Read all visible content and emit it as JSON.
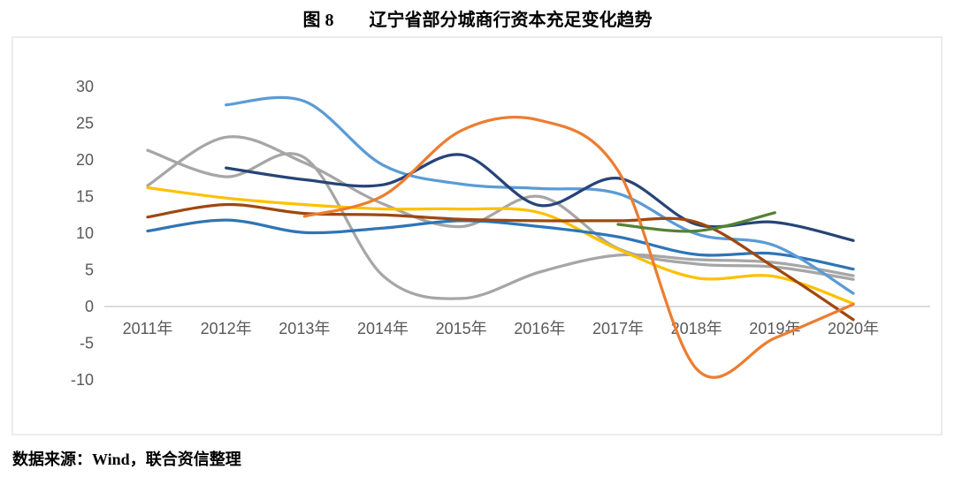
{
  "caption": "数据来源：Wind，联合资信整理",
  "chart_data": {
    "type": "line",
    "title": "图 8　　辽宁省部分城商行资本充足变化趋势",
    "subtitle": "",
    "xlabel": "",
    "ylabel": "",
    "x_categories": [
      "2011年",
      "2012年",
      "2013年",
      "2014年",
      "2015年",
      "2016年",
      "2017年",
      "2018年",
      "2019年",
      "2020年"
    ],
    "y_ticks": [
      30,
      25,
      20,
      15,
      10,
      5,
      0,
      -5,
      -10
    ],
    "ylim": [
      -10,
      30
    ],
    "grid": "zero-axis-line-only",
    "legend_position": "none",
    "line_style": "smooth",
    "plot_colors": {
      "border_color": "#D9D9D9",
      "axis_line_color": "#C6C6C6",
      "tick_label_color": "#595959",
      "background": "#FFFFFF"
    },
    "series": [
      {
        "id": "series-gray-a",
        "color": "#A6A6A6",
        "start_index": 0,
        "values": [
          21.3,
          17.7,
          20.3,
          4.2,
          1.1,
          4.7,
          7.0,
          6.4,
          6.0,
          4.2
        ]
      },
      {
        "id": "series-gray-b",
        "color": "#A6A6A6",
        "start_index": 0,
        "values": [
          16.5,
          23.1,
          19.6,
          14.0,
          10.9,
          15.0,
          7.9,
          5.8,
          5.4,
          3.7
        ]
      },
      {
        "id": "series-gold",
        "color": "#FFC000",
        "start_index": 0,
        "values": [
          16.2,
          14.8,
          13.9,
          13.3,
          13.3,
          12.8,
          7.8,
          3.9,
          4.1,
          0.4
        ]
      },
      {
        "id": "series-steel-blue",
        "color": "#2E75B6",
        "start_index": 0,
        "values": [
          10.3,
          11.8,
          10.1,
          10.7,
          11.7,
          10.9,
          9.5,
          7.1,
          7.2,
          5.1
        ]
      },
      {
        "id": "series-light-blue",
        "color": "#5B9BD5",
        "start_index": 1,
        "values": [
          27.5,
          28.0,
          19.3,
          16.7,
          16.1,
          15.4,
          9.9,
          8.3,
          1.8
        ]
      },
      {
        "id": "series-navy",
        "color": "#264478",
        "start_index": 1,
        "values": [
          18.9,
          17.3,
          16.6,
          20.7,
          13.8,
          17.5,
          11.2,
          11.5,
          9.0
        ]
      },
      {
        "id": "series-brown",
        "color": "#9E480E",
        "start_index": 0,
        "values": [
          12.2,
          13.9,
          12.7,
          12.5,
          11.9,
          11.7,
          11.7,
          11.5,
          5.3,
          -1.8
        ]
      },
      {
        "id": "series-orange",
        "color": "#ED7D31",
        "start_index": 2,
        "values": [
          12.3,
          15.1,
          24.0,
          25.4,
          18.5,
          -8.5,
          -4.3,
          0.3
        ]
      },
      {
        "id": "series-green",
        "color": "#548235",
        "start_index": 6,
        "values": [
          11.2,
          10.3,
          12.8
        ]
      }
    ]
  }
}
